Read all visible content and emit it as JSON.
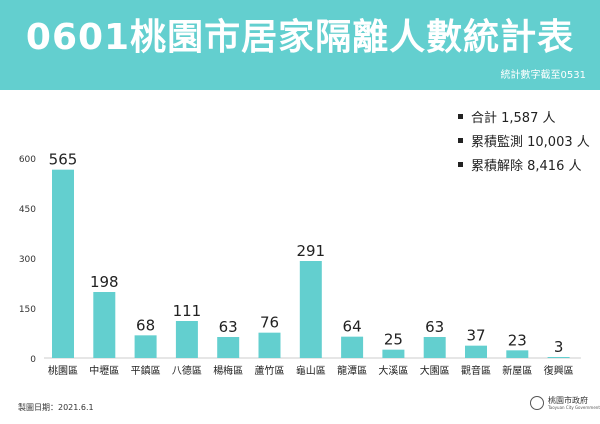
{
  "header": {
    "title": "0601桃園市居家隔離人數統計表",
    "subtitle": "統計數字截至0531"
  },
  "colors": {
    "header_bg": "#63cfcf",
    "bar": "#63cfcf",
    "text": "#222222"
  },
  "summary": [
    {
      "text": "合計 1,587 人"
    },
    {
      "text": "累積監測 10,003 人"
    },
    {
      "text": "累積解除 8,416 人"
    }
  ],
  "footer": {
    "date": "製圖日期：2021.6.1",
    "logo_name": "桃園市政府",
    "logo_en": "Taoyuan City Government"
  },
  "chart_data": {
    "type": "bar",
    "categories": [
      "桃園區",
      "中壢區",
      "平鎮區",
      "八德區",
      "楊梅區",
      "蘆竹區",
      "龜山區",
      "龍潭區",
      "大溪區",
      "大園區",
      "觀音區",
      "新屋區",
      "復興區"
    ],
    "values": [
      565,
      198,
      68,
      111,
      63,
      76,
      291,
      64,
      25,
      63,
      37,
      23,
      3
    ],
    "yticks": [
      0,
      150,
      300,
      450,
      600
    ],
    "ylim": [
      0,
      600
    ],
    "title": "0601桃園市居家隔離人數統計表",
    "xlabel": "",
    "ylabel": "",
    "grid": false,
    "data_labels": true
  }
}
